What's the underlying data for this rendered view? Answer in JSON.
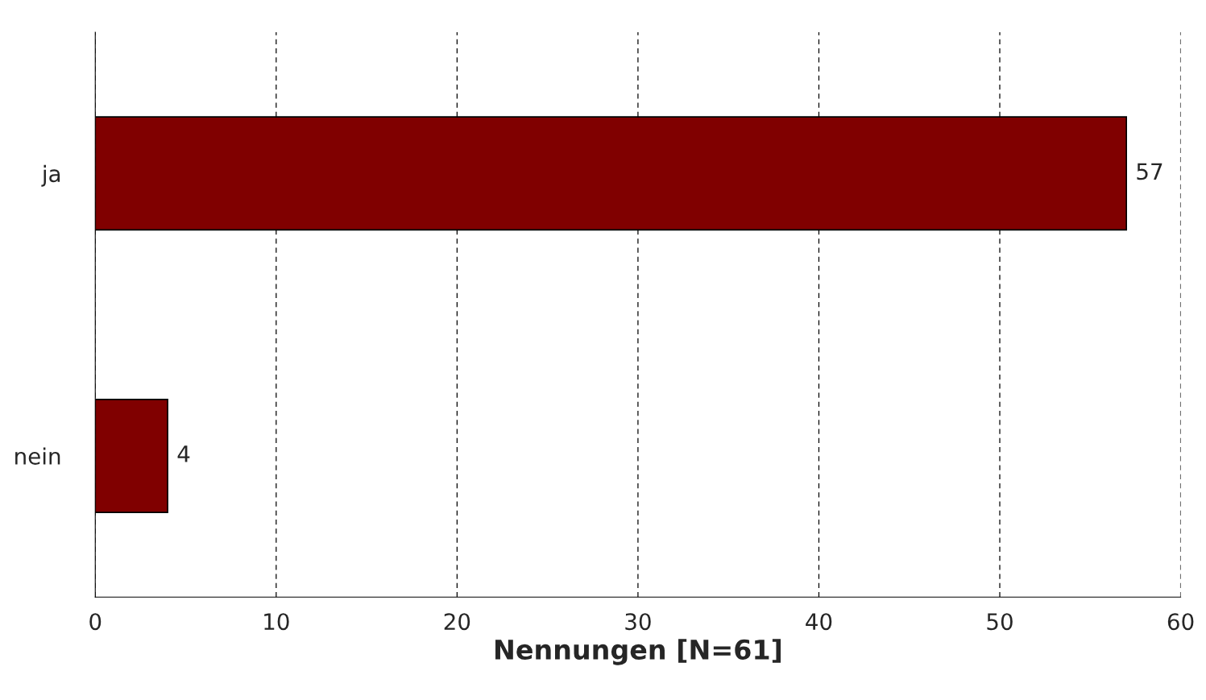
{
  "chart_data": {
    "type": "bar",
    "orientation": "horizontal",
    "xlabel": "Nennungen [N=61]",
    "categories": [
      "ja",
      "nein"
    ],
    "values": [
      57,
      4
    ],
    "color": "#800000",
    "xlim": [
      0,
      60
    ],
    "xticks": [
      0,
      10,
      20,
      30,
      40,
      50,
      60
    ],
    "grid": "x",
    "data_labels": true
  }
}
